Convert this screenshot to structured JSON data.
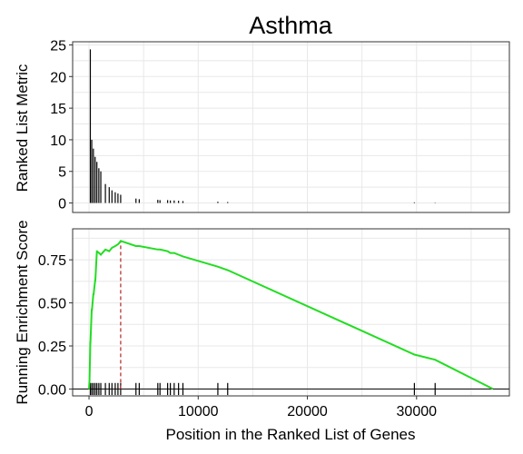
{
  "chart_data": {
    "type": "line",
    "title": "Asthma",
    "xlabel": "Position in the Ranked List of Genes",
    "xlim": [
      -1500,
      38500
    ],
    "x_ticks": [
      0,
      10000,
      20000,
      30000
    ],
    "grid": true,
    "panels": [
      {
        "id": "ranked-metric",
        "type": "bar",
        "ylabel": "Ranked List Metric",
        "ylim": [
          -1.5,
          25.5
        ],
        "y_ticks": [
          0,
          5,
          10,
          15,
          20,
          25
        ],
        "bars": {
          "x": [
            120,
            250,
            400,
            560,
            720,
            900,
            1080,
            1500,
            1850,
            2100,
            2400,
            2650,
            2900,
            4300,
            4600,
            6300,
            6500,
            7200,
            7450,
            7800,
            8200,
            8600,
            11800,
            12700,
            29800,
            31700
          ],
          "values": [
            24.3,
            10.0,
            8.6,
            7.3,
            6.5,
            5.5,
            5.0,
            3.0,
            2.5,
            2.0,
            1.7,
            1.5,
            1.3,
            0.7,
            0.6,
            0.5,
            0.45,
            0.45,
            0.4,
            0.4,
            0.35,
            0.3,
            0.2,
            0.15,
            0.1,
            0.05
          ]
        }
      },
      {
        "id": "running-es",
        "type": "line",
        "ylabel": "Running Enrichment Score",
        "ylim": [
          -0.04,
          0.93
        ],
        "y_ticks": [
          0.0,
          0.25,
          0.5,
          0.75
        ],
        "y_tick_labels": [
          "0.00",
          "0.25",
          "0.50",
          "0.75"
        ],
        "line_color": "#22dd22",
        "es_line": {
          "x": [
            0,
            50,
            120,
            130,
            250,
            270,
            400,
            420,
            560,
            580,
            720,
            740,
            900,
            920,
            1080,
            1500,
            1850,
            2100,
            2400,
            2650,
            2800,
            2900,
            4300,
            4600,
            6300,
            6500,
            7200,
            7450,
            7800,
            8200,
            8600,
            11800,
            12700,
            29800,
            31700,
            37000
          ],
          "y": [
            0.0,
            0.05,
            0.27,
            0.27,
            0.46,
            0.46,
            0.55,
            0.55,
            0.63,
            0.63,
            0.8,
            0.8,
            0.79,
            0.79,
            0.78,
            0.81,
            0.8,
            0.82,
            0.83,
            0.84,
            0.85,
            0.86,
            0.83,
            0.83,
            0.81,
            0.81,
            0.8,
            0.79,
            0.79,
            0.78,
            0.77,
            0.71,
            0.69,
            0.2,
            0.17,
            0.0
          ]
        },
        "peak_marker": {
          "x": 2900,
          "y": 0.86,
          "color": "#b22222"
        },
        "hit_positions": [
          120,
          250,
          400,
          560,
          720,
          900,
          1080,
          1500,
          1850,
          2100,
          2400,
          2650,
          2900,
          4300,
          4600,
          6300,
          6500,
          7200,
          7450,
          7800,
          8200,
          8600,
          11800,
          12700,
          29800,
          31700
        ]
      }
    ]
  }
}
